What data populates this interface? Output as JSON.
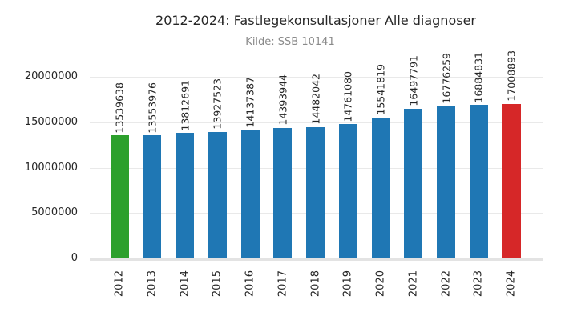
{
  "chart_data": {
    "type": "bar",
    "title": "2012-2024: Fastlegekonsultasjoner Alle diagnoser",
    "subtitle": "Kilde: SSB 10141",
    "categories": [
      "2012",
      "2013",
      "2014",
      "2015",
      "2016",
      "2017",
      "2018",
      "2019",
      "2020",
      "2021",
      "2022",
      "2023",
      "2024"
    ],
    "values": [
      13539638,
      13553976,
      13812691,
      13927523,
      14137387,
      14393944,
      14482042,
      14761080,
      15541819,
      16497791,
      16776259,
      16884831,
      17008893
    ],
    "bar_colors": [
      "#2ca02c",
      "#1f77b4",
      "#1f77b4",
      "#1f77b4",
      "#1f77b4",
      "#1f77b4",
      "#1f77b4",
      "#1f77b4",
      "#1f77b4",
      "#1f77b4",
      "#1f77b4",
      "#1f77b4",
      "#d62728"
    ],
    "xlabel": "",
    "ylabel": "",
    "ylim": [
      0,
      20000000
    ],
    "yticks": [
      0,
      5000000,
      10000000,
      15000000,
      20000000
    ],
    "grid": true,
    "legend": false,
    "bar_label_rotation": 90,
    "x_tick_rotation": 90,
    "colors": {
      "first_bar": "#2ca02c",
      "default_bar": "#1f77b4",
      "last_bar": "#d62728",
      "gridline": "#e9e9e9",
      "baseline": "#e3e3e3",
      "title_text": "#262626",
      "subtitle_text": "#8a8a8a",
      "tick_text": "#262626",
      "background": "#ffffff"
    }
  }
}
